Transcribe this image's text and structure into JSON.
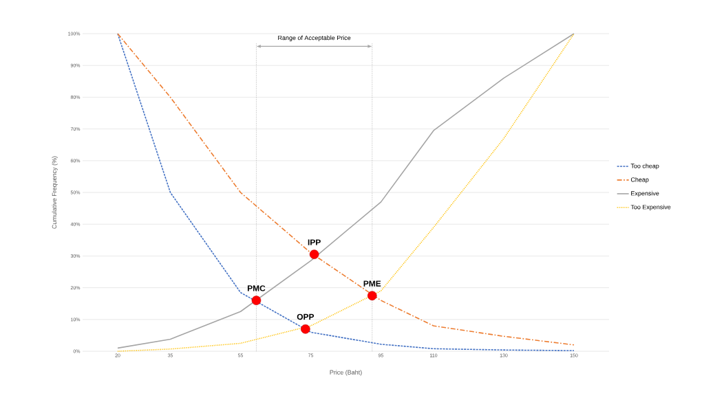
{
  "chart_data": {
    "type": "line",
    "xlabel": "Price (Baht)",
    "ylabel": "Cumulative Frequency (%)",
    "x": [
      20,
      35,
      55,
      75,
      95,
      110,
      130,
      150
    ],
    "xlim": [
      10,
      160
    ],
    "xticks": [
      20,
      35,
      55,
      75,
      95,
      110,
      130,
      150
    ],
    "ylim": [
      0,
      100
    ],
    "yticks": [
      {
        "value": 0,
        "label": "0%"
      },
      {
        "value": 10,
        "label": "10%"
      },
      {
        "value": 20,
        "label": "20%"
      },
      {
        "value": 30,
        "label": "30%"
      },
      {
        "value": 40,
        "label": "40%"
      },
      {
        "value": 50,
        "label": "50%"
      },
      {
        "value": 60,
        "label": "60%"
      },
      {
        "value": 70,
        "label": "70%"
      },
      {
        "value": 80,
        "label": "80%"
      },
      {
        "value": 90,
        "label": "90%"
      },
      {
        "value": 100,
        "label": "100%"
      }
    ],
    "grid": "y",
    "legend": "right",
    "series": [
      {
        "name": "Too cheap",
        "color": "#4472c4",
        "line_style": "dashed",
        "values": [
          100,
          50,
          18.5,
          6,
          2.2,
          0.8,
          0.4,
          0.2
        ]
      },
      {
        "name": "Cheap",
        "color": "#ed7d31",
        "line_style": "dashdot",
        "values": [
          100,
          80,
          50,
          31,
          16,
          8,
          4.7,
          2
        ]
      },
      {
        "name": "Expensive",
        "color": "#a5a5a5",
        "line_style": "solid",
        "values": [
          1,
          3.8,
          12.5,
          28.5,
          47,
          69.5,
          86,
          100
        ]
      },
      {
        "name": "Too Expensive",
        "color": "#ffc000",
        "line_style": "dotted",
        "values": [
          0,
          0.7,
          2.5,
          8,
          19,
          39,
          67,
          100
        ]
      },
      {
        "type": "scatter",
        "color": "#ff0000",
        "x": [
          59.5,
          73.5,
          76,
          92.5
        ],
        "values": [
          16,
          7,
          30.5,
          17.5
        ]
      }
    ],
    "ref_lines": [
      {
        "axis": "x",
        "value": 59.5,
        "color": "#a6a6a6",
        "line_style": "dotted"
      },
      {
        "axis": "x",
        "value": 92.5,
        "color": "#a6a6a6",
        "line_style": "dotted"
      }
    ],
    "annotations": [
      "Range of Acceptable Price",
      {
        "text": "PMC",
        "x": 59.5,
        "y": 16
      },
      {
        "text": "OPP",
        "x": 73.5,
        "y": 7
      },
      {
        "text": "IPP",
        "x": 76,
        "y": 30.5
      },
      {
        "text": "PME",
        "x": 92.5,
        "y": 17.5
      }
    ]
  }
}
